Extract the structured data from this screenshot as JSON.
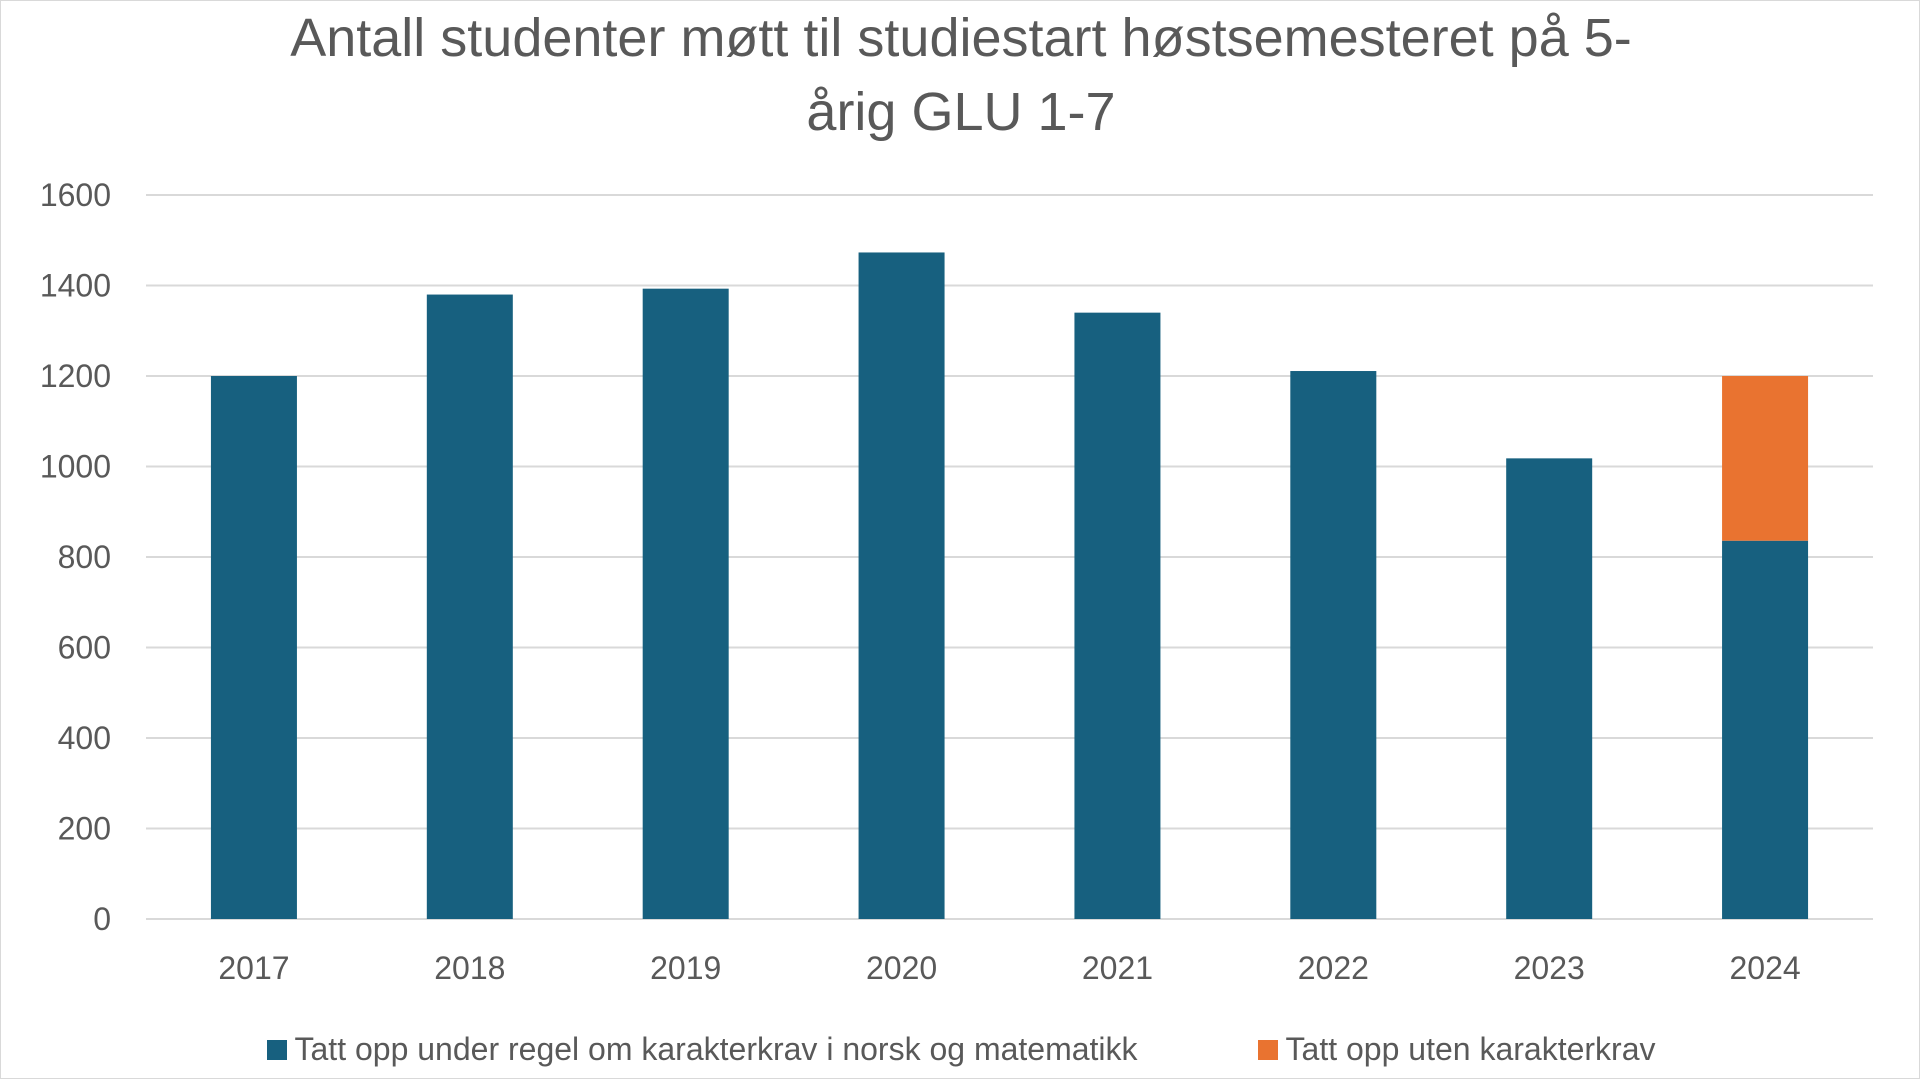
{
  "chart_data": {
    "type": "bar",
    "stacked": true,
    "title_lines": [
      "Antall studenter møtt til studiestart høstsemesteret på 5-",
      "årig GLU 1-7"
    ],
    "categories": [
      "2017",
      "2018",
      "2019",
      "2020",
      "2021",
      "2022",
      "2023",
      "2024"
    ],
    "series": [
      {
        "name": "Tatt opp under regel om karakterkrav i norsk og matematikk",
        "color": "#17607F",
        "values": [
          1200,
          1380,
          1393,
          1473,
          1340,
          1211,
          1018,
          836
        ]
      },
      {
        "name": "Tatt opp uten karakterkrav",
        "color": "#E97330",
        "values": [
          0,
          0,
          0,
          0,
          0,
          0,
          0,
          364
        ]
      }
    ],
    "yticks": [
      "0",
      "200",
      "400",
      "600",
      "800",
      "1000",
      "1200",
      "1400",
      "1600"
    ],
    "ylim": [
      0,
      1600
    ],
    "grid": true,
    "gridline_color": "#d9d9d9",
    "legend_position": "bottom"
  }
}
